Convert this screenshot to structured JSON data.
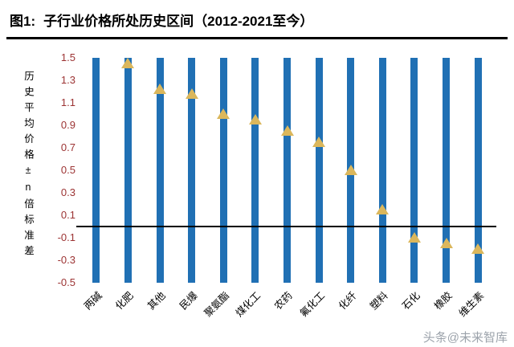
{
  "header": {
    "figure_label": "图1:",
    "title": "子行业价格所处历史区间（2012-2021至今）"
  },
  "watermark": "头条@未来智库",
  "chart_data": {
    "type": "bar",
    "title": "子行业价格所处历史区间（2012-2021至今）",
    "xlabel": "",
    "ylabel": "历史平均价格±n倍标准差",
    "ylim": [
      -0.5,
      1.5
    ],
    "yticks": [
      1.5,
      1.3,
      1.1,
      0.9,
      0.7,
      0.5,
      0.3,
      0.1,
      -0.1,
      -0.3,
      -0.5
    ],
    "grid": false,
    "legend": "none",
    "categories": [
      "两碱",
      "化肥",
      "其他",
      "民爆",
      "聚氨酯",
      "煤化工",
      "农药",
      "氟化工",
      "化纤",
      "塑料",
      "石化",
      "橡胶",
      "维生素"
    ],
    "bar_range": [
      -0.5,
      1.5
    ],
    "marker_values": [
      null,
      1.45,
      1.22,
      1.18,
      1.0,
      0.95,
      0.85,
      0.75,
      0.5,
      0.15,
      -0.1,
      -0.15,
      -0.2
    ],
    "zero_line": 0,
    "colors": {
      "bar": "#2070B4",
      "marker": "#DBB75C",
      "zero_line": "#000000",
      "ytick_text": "#9C3333",
      "category_text": "#000000"
    }
  }
}
